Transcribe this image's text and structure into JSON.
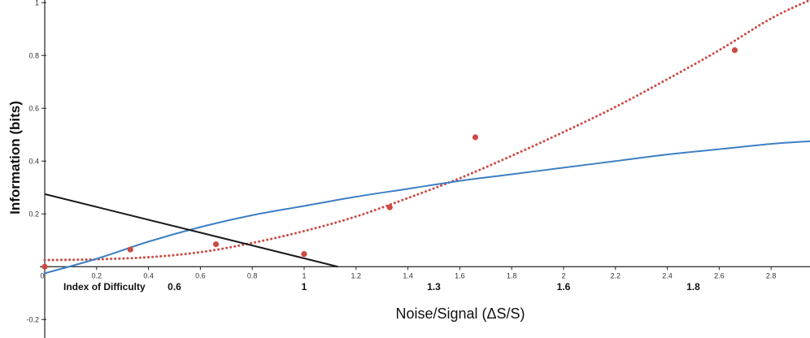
{
  "chart_data": {
    "type": "scatter",
    "xlabel": "Noise/Signal (ΔS/S)",
    "ylabel": "Information  (bits)",
    "xlim": [
      0,
      2.95
    ],
    "ylim": [
      -0.27,
      1.01
    ],
    "x_ticks": [
      0,
      0.2,
      0.4,
      0.6,
      0.8,
      1,
      1.2,
      1.4,
      1.6,
      1.8,
      2,
      2.2,
      2.4,
      2.6,
      2.8
    ],
    "x_tick_labels": [
      "0",
      "0.2",
      "0.4",
      "0.6",
      "0.8",
      "1",
      "1.2",
      "1.4",
      "1.6",
      "1.8",
      "2",
      "2.2",
      "2.4",
      "2.6",
      "2.8"
    ],
    "y_ticks": [
      -0.2,
      0.2,
      0.4,
      0.6,
      0.8,
      1
    ],
    "y_tick_labels": [
      "-0.2",
      "0.2",
      "0.4",
      "0.6",
      "0.8",
      "1"
    ],
    "grid": false,
    "colors": {
      "points": "#cc4b44",
      "trend_dotted": "#cc4b44",
      "fit_blue": "#3d7fc4",
      "fit_black": "#1a1a1a",
      "axis": "#222222"
    },
    "series": [
      {
        "kind": "points",
        "x": [
          0,
          0.33,
          0.66,
          1.0,
          1.33,
          1.66,
          2.66
        ],
        "y": [
          0.0,
          0.065,
          0.085,
          0.048,
          0.225,
          0.49,
          0.82
        ]
      },
      {
        "kind": "dotted-curve",
        "x": [
          0,
          0.2,
          0.4,
          0.6,
          0.8,
          1.0,
          1.2,
          1.4,
          1.6,
          1.8,
          2.0,
          2.2,
          2.4,
          2.6,
          2.8,
          2.95
        ],
        "y": [
          0.025,
          0.028,
          0.036,
          0.055,
          0.09,
          0.135,
          0.19,
          0.26,
          0.335,
          0.42,
          0.51,
          0.605,
          0.71,
          0.82,
          0.94,
          1.01
        ]
      },
      {
        "kind": "solid-curve",
        "x": [
          0,
          0.2,
          0.4,
          0.6,
          0.8,
          1.0,
          1.2,
          1.4,
          1.6,
          1.8,
          2.0,
          2.2,
          2.4,
          2.6,
          2.8,
          2.95
        ],
        "y": [
          -0.025,
          0.03,
          0.095,
          0.15,
          0.195,
          0.23,
          0.265,
          0.295,
          0.325,
          0.35,
          0.375,
          0.4,
          0.425,
          0.445,
          0.465,
          0.475
        ]
      },
      {
        "kind": "solid-line",
        "x": [
          0,
          1.13
        ],
        "y": [
          0.275,
          0.0
        ]
      }
    ],
    "annotations": [
      {
        "text": "Index of Difficulty",
        "x": 0.23
      },
      {
        "text": "0.6",
        "x": 0.5
      },
      {
        "text": "1",
        "x": 1.0
      },
      {
        "text": "1.3",
        "x": 1.5
      },
      {
        "text": "1.6",
        "x": 2.0
      },
      {
        "text": "1.8",
        "x": 2.5
      }
    ]
  }
}
